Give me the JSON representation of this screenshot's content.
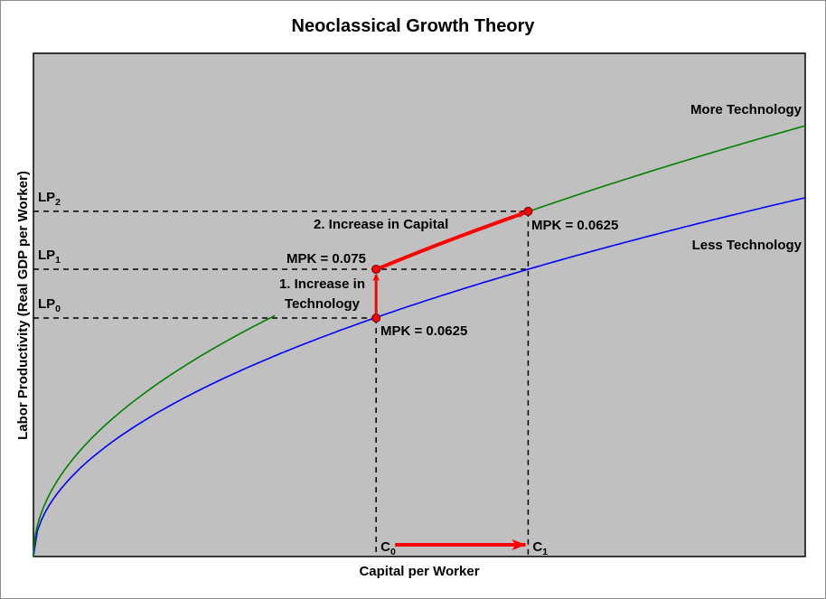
{
  "chart_data": {
    "type": "line",
    "title": "Neoclassical Growth Theory",
    "xlabel": "Capital per Worker",
    "ylabel": "Labor Productivity (Real GDP per Worker)",
    "xlim": [
      0,
      100
    ],
    "ylim": [
      0,
      100
    ],
    "grid": false,
    "series": [
      {
        "name": "Less Technology",
        "color": "#0000ff",
        "formula": "y = c*sqrt(x)",
        "c": 7.13,
        "visible_ranges": [
          [
            0,
            100
          ]
        ]
      },
      {
        "name": "More Technology",
        "color": "#008000",
        "formula": "y = c*sqrt(x)",
        "c": 8.56,
        "visible_ranges": [
          [
            0,
            31.3
          ],
          [
            64.1,
            100
          ]
        ]
      }
    ],
    "capital_levels": [
      {
        "label": "C",
        "sub": "0",
        "value": 44.4
      },
      {
        "label": "C",
        "sub": "1",
        "value": 64.1
      }
    ],
    "productivity_levels": [
      {
        "label": "LP",
        "sub": "0",
        "value": 47.4
      },
      {
        "label": "LP",
        "sub": "1",
        "value": 57.1
      },
      {
        "label": "LP",
        "sub": "2",
        "value": 68.6
      }
    ],
    "points": [
      {
        "x": 44.4,
        "y": 47.4,
        "label": "MPK = 0.0625"
      },
      {
        "x": 44.4,
        "y": 57.1,
        "label": "MPK = 0.075"
      },
      {
        "x": 64.1,
        "y": 68.6,
        "label": "MPK = 0.0625"
      }
    ],
    "annotations": {
      "step1_line1": "1. Increase in",
      "step1_line2": "Technology",
      "step2": "2. Increase in Capital"
    },
    "colors": {
      "plot_bg": "#c0c0c0",
      "arrow": "#ff0000"
    }
  }
}
